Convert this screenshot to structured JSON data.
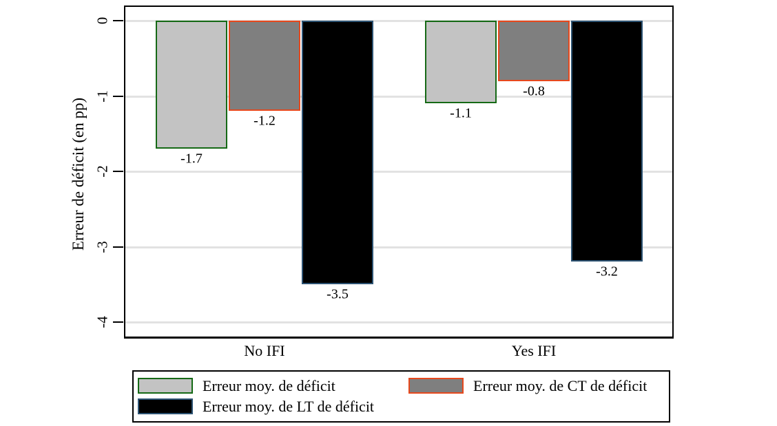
{
  "figure": {
    "background_color": "#ffffff",
    "grid_color": "#e2e2e2",
    "axis_color": "#000000",
    "text_color": "#000000"
  },
  "chart_data": {
    "type": "bar",
    "title": "",
    "xlabel": "",
    "ylabel": "Erreur de déficit (en pp)",
    "categories": [
      "No IFI",
      "Yes IFI"
    ],
    "series": [
      {
        "name": "Erreur moy. de déficit",
        "values": [
          -1.7,
          -1.1
        ],
        "value_labels": [
          "-1.7",
          "-1.1"
        ],
        "fill_color": "#c3c3c3",
        "border_color": "#156915"
      },
      {
        "name": "Erreur moy. de CT de déficit",
        "values": [
          -1.2,
          -0.8
        ],
        "value_labels": [
          "-1.2",
          "-0.8"
        ],
        "fill_color": "#7f7f7f",
        "border_color": "#e7481c"
      },
      {
        "name": "Erreur moy. de LT de déficit",
        "values": [
          -3.5,
          -3.2
        ],
        "value_labels": [
          "-3.5",
          "-3.2"
        ],
        "fill_color": "#000000",
        "border_color": "#2d5373"
      }
    ],
    "yticks": [
      {
        "value": 0,
        "label": "0"
      },
      {
        "value": -1,
        "label": "-1"
      },
      {
        "value": -2,
        "label": "-2"
      },
      {
        "value": -3,
        "label": "-3"
      },
      {
        "value": -4,
        "label": "-4"
      }
    ],
    "ylim": [
      0.2,
      -4.22
    ],
    "grid": true,
    "legend_position": "bottom"
  }
}
